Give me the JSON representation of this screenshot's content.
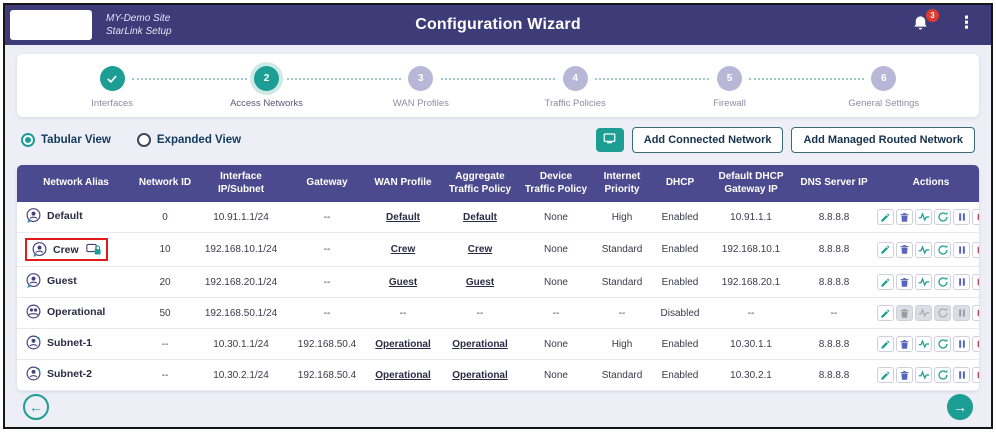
{
  "header": {
    "site_line1": "MY-Demo Site",
    "site_line2": "StarLink Setup",
    "title": "Configuration Wizard",
    "notification_badge": "3",
    "menu_glyph": "⋮"
  },
  "stepper": {
    "steps": [
      {
        "number": "1",
        "label": "Interfaces",
        "state": "completed"
      },
      {
        "number": "2",
        "label": "Access Networks",
        "state": "active"
      },
      {
        "number": "3",
        "label": "WAN Profiles",
        "state": "pending"
      },
      {
        "number": "4",
        "label": "Traffic Policies",
        "state": "pending"
      },
      {
        "number": "5",
        "label": "Firewall",
        "state": "pending"
      },
      {
        "number": "6",
        "label": "General Settings",
        "state": "pending"
      }
    ]
  },
  "toolbar": {
    "view_options": [
      {
        "label": "Tabular View",
        "selected": true
      },
      {
        "label": "Expanded View",
        "selected": false
      }
    ],
    "buttons": [
      {
        "label": "Add Connected Network"
      },
      {
        "label": "Add Managed Routed Network"
      }
    ]
  },
  "table": {
    "columns": [
      "Network Alias",
      "Network ID",
      "Interface IP/Subnet",
      "Gateway",
      "WAN Profile",
      "Aggregate Traffic Policy",
      "Device Traffic Policy",
      "Internet Priority",
      "DHCP",
      "Default DHCP Gateway IP",
      "DNS Server IP",
      "Actions"
    ],
    "actions": [
      {
        "name": "edit",
        "icon": "edit-icon"
      },
      {
        "name": "delete",
        "icon": "delete-icon"
      },
      {
        "name": "activity",
        "icon": "activity-icon"
      },
      {
        "name": "refresh",
        "icon": "refresh-icon"
      },
      {
        "name": "pause",
        "icon": "pause-icon"
      },
      {
        "name": "stop",
        "icon": "stop-icon"
      }
    ],
    "rows": [
      {
        "icon": "access-network-icon",
        "alias": "Default",
        "highlight": false,
        "lock": false,
        "network_id": "0",
        "ip_subnet": "10.91.1.1/24",
        "gateway": "--",
        "wan_profile": "Default",
        "agg_policy": "Default",
        "device_policy": "None",
        "priority": "High",
        "dhcp": "Enabled",
        "dhcp_gateway": "10.91.1.1",
        "dns": "8.8.8.8",
        "disabled_actions": []
      },
      {
        "icon": "access-network-icon",
        "alias": "Crew",
        "highlight": true,
        "lock": true,
        "network_id": "10",
        "ip_subnet": "192.168.10.1/24",
        "gateway": "--",
        "wan_profile": "Crew",
        "agg_policy": "Crew",
        "device_policy": "None",
        "priority": "Standard",
        "dhcp": "Enabled",
        "dhcp_gateway": "192.168.10.1",
        "dns": "8.8.8.8",
        "disabled_actions": []
      },
      {
        "icon": "access-network-icon",
        "alias": "Guest",
        "highlight": false,
        "lock": false,
        "network_id": "20",
        "ip_subnet": "192.168.20.1/24",
        "gateway": "--",
        "wan_profile": "Guest",
        "agg_policy": "Guest",
        "device_policy": "None",
        "priority": "Standard",
        "dhcp": "Enabled",
        "dhcp_gateway": "192.168.20.1",
        "dns": "8.8.8.8",
        "disabled_actions": []
      },
      {
        "icon": "operational-network-icon",
        "alias": "Operational",
        "highlight": false,
        "lock": false,
        "network_id": "50",
        "ip_subnet": "192.168.50.1/24",
        "gateway": "--",
        "wan_profile": "--",
        "agg_policy": "--",
        "device_policy": "--",
        "priority": "--",
        "dhcp": "Disabled",
        "dhcp_gateway": "--",
        "dns": "--",
        "disabled_actions": [
          "delete",
          "activity",
          "refresh",
          "pause"
        ]
      },
      {
        "icon": "subnet-icon",
        "alias": "Subnet-1",
        "highlight": false,
        "lock": false,
        "network_id": "--",
        "ip_subnet": "10.30.1.1/24",
        "gateway": "192.168.50.4",
        "wan_profile": "Operational",
        "agg_policy": "Operational",
        "device_policy": "None",
        "priority": "High",
        "dhcp": "Enabled",
        "dhcp_gateway": "10.30.1.1",
        "dns": "8.8.8.8",
        "disabled_actions": []
      },
      {
        "icon": "subnet-icon",
        "alias": "Subnet-2",
        "highlight": false,
        "lock": false,
        "network_id": "--",
        "ip_subnet": "10.30.2.1/24",
        "gateway": "192.168.50.4",
        "wan_profile": "Operational",
        "agg_policy": "Operational",
        "device_policy": "None",
        "priority": "Standard",
        "dhcp": "Enabled",
        "dhcp_gateway": "10.30.2.1",
        "dns": "8.8.8.8",
        "disabled_actions": []
      }
    ]
  },
  "footer": {
    "back_glyph": "←",
    "next_glyph": "→"
  },
  "colors": {
    "header_bg": "#3e3c78",
    "table_header_bg": "#4c4a8e",
    "accent_teal": "#1d9e94",
    "badge_red": "#e03a2f",
    "annotation_red": "#e01b1b",
    "page_bg": "#edeef6"
  }
}
